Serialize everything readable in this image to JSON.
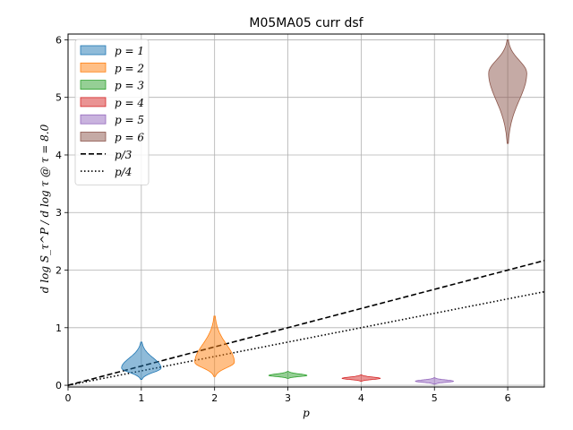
{
  "chart_data": {
    "type": "violin",
    "title": "M05MA05 curr dsf",
    "xlabel": "p",
    "ylabel": "d log S_τ^P / d log τ @ τ = 8.0",
    "xlim": [
      0,
      6.5
    ],
    "ylim": [
      -0.03,
      6.1
    ],
    "xticks": [
      "0",
      "1",
      "2",
      "3",
      "4",
      "5",
      "6"
    ],
    "yticks": [
      "0",
      "1",
      "2",
      "3",
      "4",
      "5",
      "6"
    ],
    "grid": true,
    "legend_position": "top-left",
    "series": [
      {
        "name": "p = 1",
        "x": 1,
        "color": "#1f77b4",
        "center": 0.3,
        "min": 0.1,
        "max": 0.75,
        "halfwidth": 0.27
      },
      {
        "name": "p = 2",
        "x": 2,
        "color": "#ff7f0e",
        "center": 0.4,
        "min": 0.15,
        "max": 1.2,
        "halfwidth": 0.27
      },
      {
        "name": "p = 3",
        "x": 3,
        "color": "#2ca02c",
        "center": 0.17,
        "min": 0.12,
        "max": 0.24,
        "halfwidth": 0.26
      },
      {
        "name": "p = 4",
        "x": 4,
        "color": "#d62728",
        "center": 0.12,
        "min": 0.07,
        "max": 0.18,
        "halfwidth": 0.26
      },
      {
        "name": "p = 5",
        "x": 5,
        "color": "#9467bd",
        "center": 0.07,
        "min": 0.02,
        "max": 0.13,
        "halfwidth": 0.26
      },
      {
        "name": "p = 6",
        "x": 6,
        "color": "#8c564b",
        "center": 5.42,
        "min": 4.2,
        "max": 6.0,
        "halfwidth": 0.26
      }
    ],
    "lines": [
      {
        "name": "p/3",
        "style": "dashed",
        "slope": 0.3333
      },
      {
        "name": "p/4",
        "style": "dotted",
        "slope": 0.25
      }
    ]
  }
}
